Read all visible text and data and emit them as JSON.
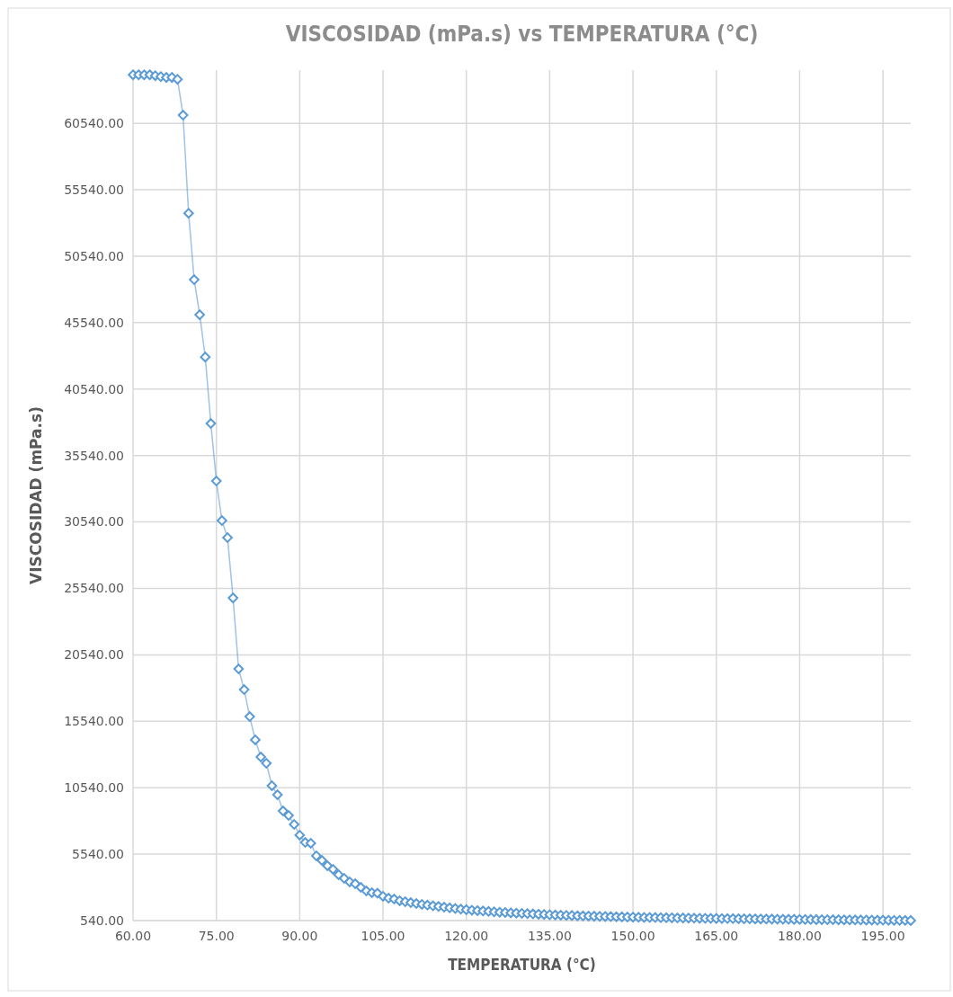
{
  "chart_data": {
    "type": "line",
    "title": "VISCOSIDAD (mPa.s) vs TEMPERATURA (°C)",
    "xlabel": "TEMPERATURA (°C)",
    "ylabel": "VISCOSIDAD (mPa.s)",
    "x": [
      60,
      61,
      62,
      63,
      64,
      65,
      66,
      67,
      68,
      69,
      70,
      71,
      72,
      73,
      74,
      75,
      76,
      77,
      78,
      79,
      80,
      81,
      82,
      83,
      84,
      85,
      86,
      87,
      88,
      89,
      90,
      91,
      92,
      93,
      94,
      95,
      96,
      97,
      98,
      99,
      100,
      101,
      102,
      103,
      104,
      105,
      106,
      107,
      108,
      109,
      110,
      111,
      112,
      113,
      114,
      115,
      116,
      117,
      118,
      119,
      120,
      121,
      122,
      123,
      124,
      125,
      126,
      127,
      128,
      129,
      130,
      131,
      132,
      133,
      134,
      135,
      136,
      137,
      138,
      139,
      140,
      141,
      142,
      143,
      144,
      145,
      146,
      147,
      148,
      149,
      150,
      151,
      152,
      153,
      154,
      155,
      156,
      157,
      158,
      159,
      160,
      161,
      162,
      163,
      164,
      165,
      166,
      167,
      168,
      169,
      170,
      171,
      172,
      173,
      174,
      175,
      176,
      177,
      178,
      179,
      180,
      181,
      182,
      183,
      184,
      185,
      186,
      187,
      188,
      189,
      190,
      191,
      192,
      193,
      194,
      195,
      196,
      197,
      198,
      199,
      200
    ],
    "series": [
      {
        "color": "#5b9bd5",
        "values": [
          64190,
          64190,
          64190,
          64190,
          64120,
          64050,
          63990,
          63990,
          63850,
          61150,
          53770,
          48770,
          46130,
          42950,
          37950,
          33620,
          30640,
          29360,
          24820,
          19480,
          17920,
          15890,
          14140,
          12850,
          12380,
          10690,
          10010,
          8790,
          8450,
          7780,
          6970,
          6420,
          6360,
          5410,
          5070,
          4670,
          4400,
          3990,
          3720,
          3450,
          3310,
          3040,
          2770,
          2640,
          2600,
          2370,
          2230,
          2160,
          2030,
          1960,
          1890,
          1820,
          1760,
          1700,
          1650,
          1600,
          1550,
          1500,
          1450,
          1400,
          1360,
          1320,
          1290,
          1260,
          1230,
          1200,
          1170,
          1150,
          1120,
          1100,
          1080,
          1060,
          1040,
          1020,
          1000,
          980,
          960,
          950,
          930,
          920,
          900,
          890,
          880,
          870,
          860,
          850,
          840,
          830,
          820,
          810,
          800,
          790,
          780,
          775,
          770,
          760,
          755,
          750,
          740,
          735,
          730,
          720,
          715,
          710,
          705,
          700,
          695,
          690,
          685,
          680,
          675,
          670,
          665,
          660,
          655,
          650,
          645,
          640,
          636,
          632,
          628,
          624,
          620,
          616,
          612,
          608,
          604,
          600,
          596,
          592,
          588,
          584,
          580,
          576,
          572,
          568,
          564,
          560,
          556,
          552,
          548
        ]
      }
    ],
    "xlim": [
      60,
      200
    ],
    "xticks": [
      {
        "value": 60,
        "label": "60.00"
      },
      {
        "value": 75,
        "label": "75.00"
      },
      {
        "value": 90,
        "label": "90.00"
      },
      {
        "value": 105,
        "label": "105.00"
      },
      {
        "value": 120,
        "label": "120.00"
      },
      {
        "value": 135,
        "label": "135.00"
      },
      {
        "value": 150,
        "label": "150.00"
      },
      {
        "value": 165,
        "label": "165.00"
      },
      {
        "value": 180,
        "label": "180.00"
      },
      {
        "value": 195,
        "label": "195.00"
      }
    ],
    "ylim": [
      540,
      64540
    ],
    "yticks": [
      {
        "value": 540,
        "label": "540.00"
      },
      {
        "value": 5540,
        "label": "5540.00"
      },
      {
        "value": 10540,
        "label": "10540.00"
      },
      {
        "value": 15540,
        "label": "15540.00"
      },
      {
        "value": 20540,
        "label": "20540.00"
      },
      {
        "value": 25540,
        "label": "25540.00"
      },
      {
        "value": 30540,
        "label": "30540.00"
      },
      {
        "value": 35540,
        "label": "35540.00"
      },
      {
        "value": 40540,
        "label": "40540.00"
      },
      {
        "value": 45540,
        "label": "45540.00"
      },
      {
        "value": 50540,
        "label": "50540.00"
      },
      {
        "value": 55540,
        "label": "55540.00"
      },
      {
        "value": 60540,
        "label": "60540.00"
      }
    ],
    "grid": true,
    "marker": "diamond",
    "line_style": "solid"
  }
}
